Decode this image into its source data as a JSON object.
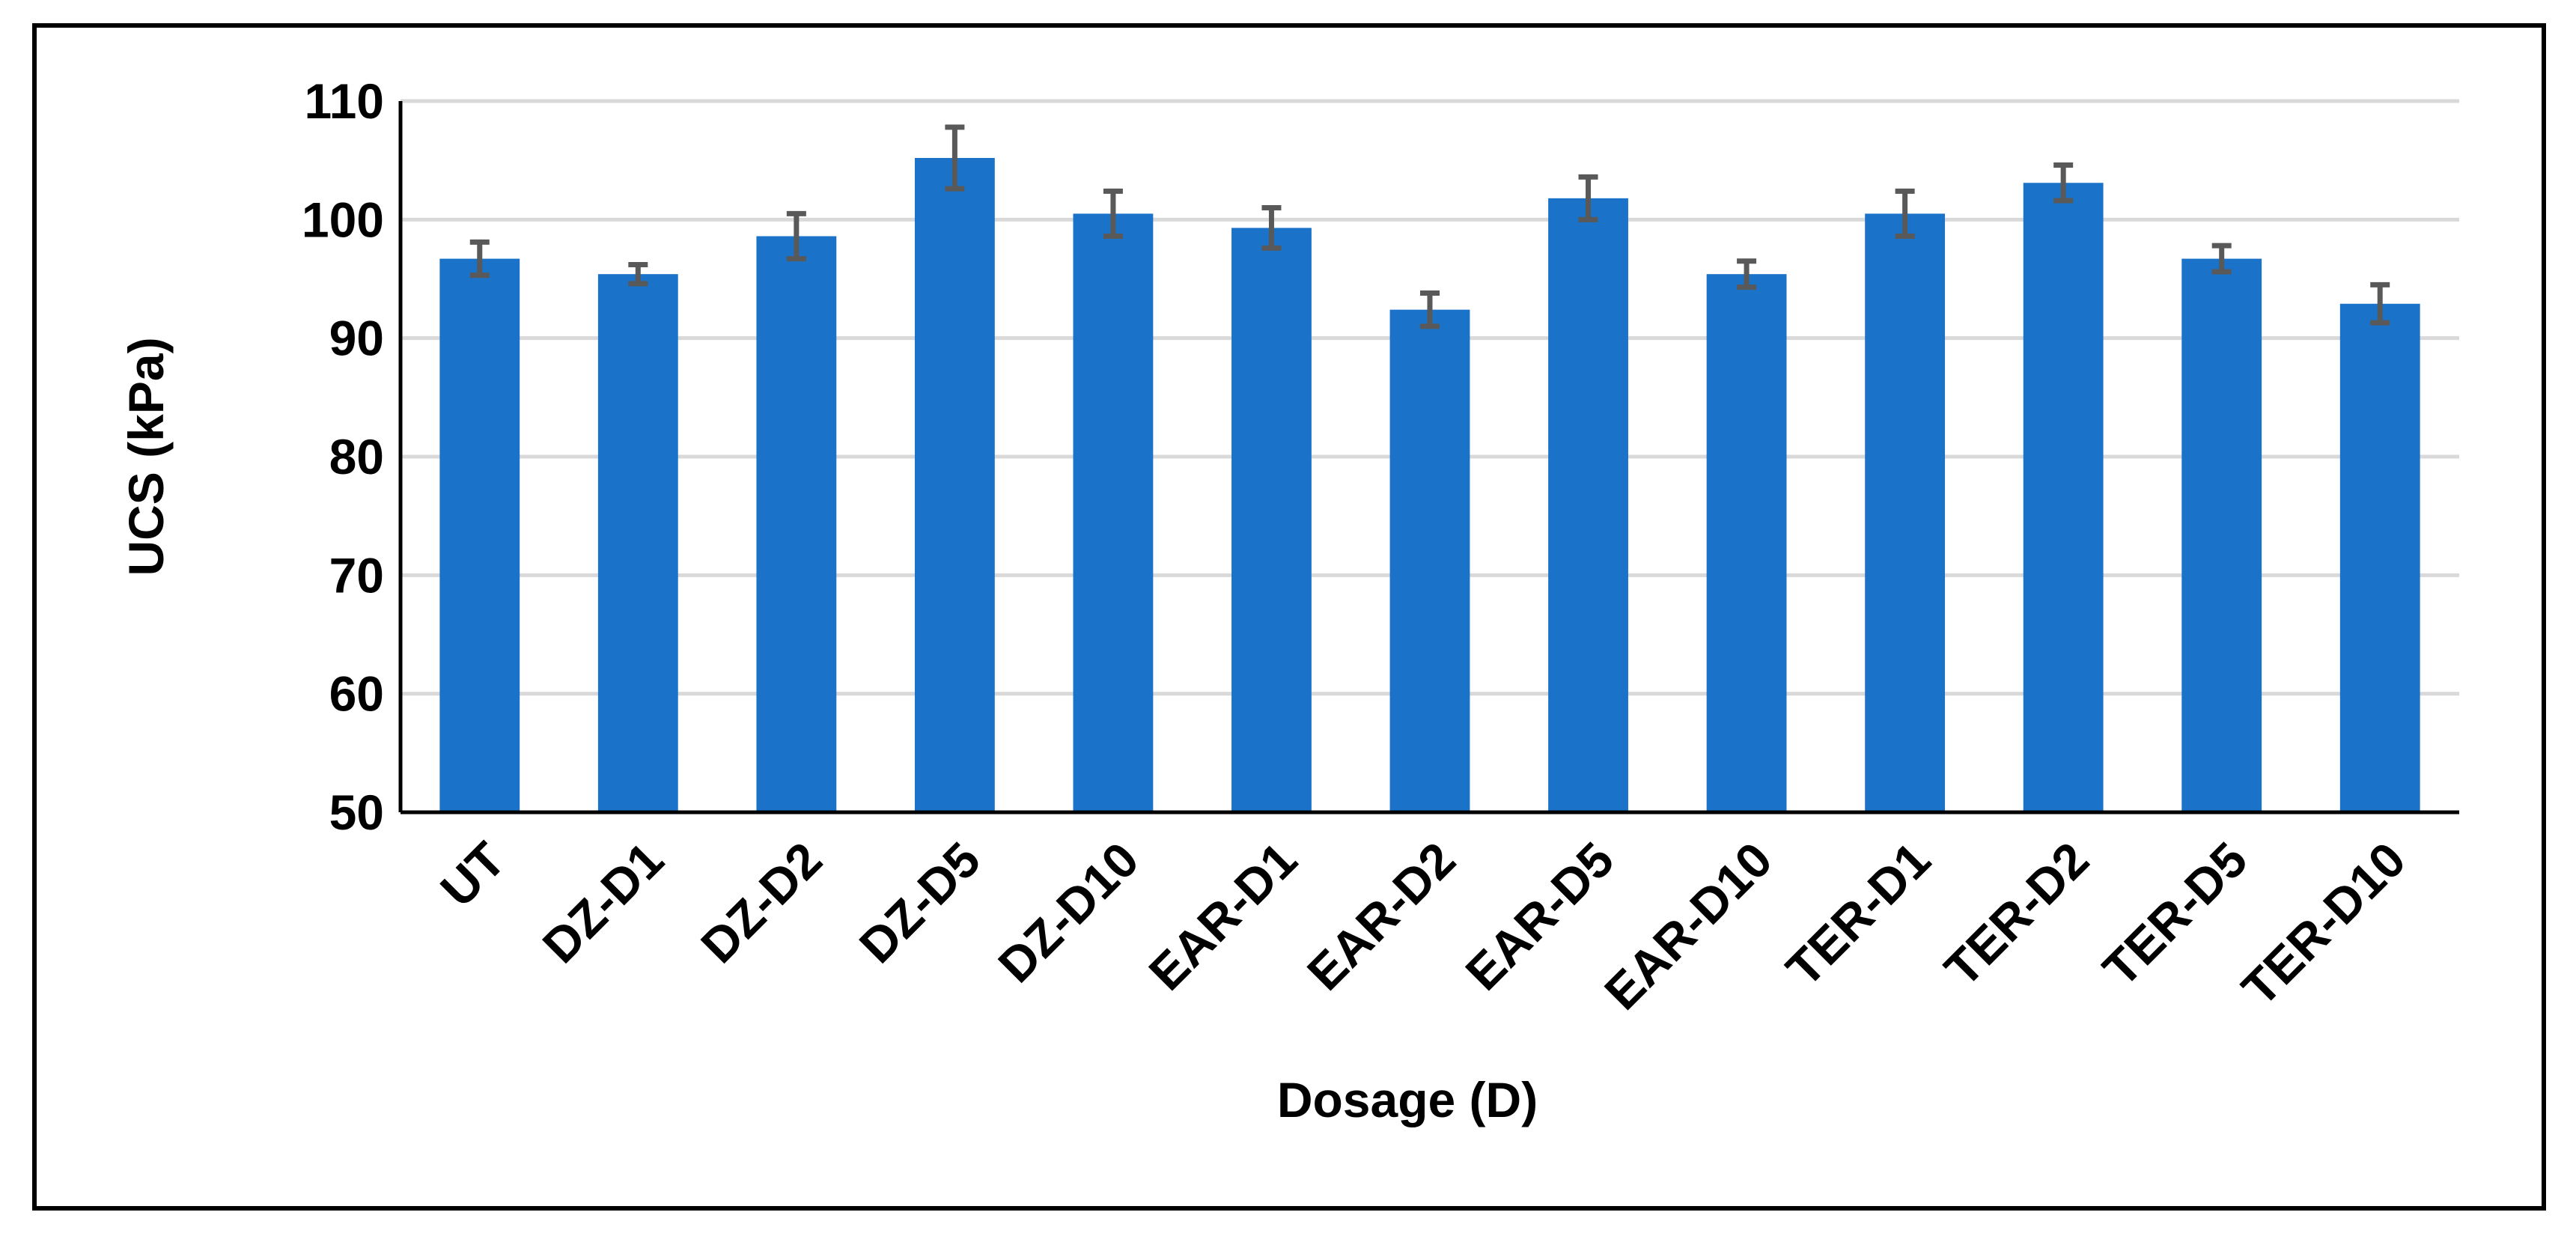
{
  "chart_data": {
    "type": "bar",
    "title": "",
    "xlabel": "Dosage (D)",
    "ylabel": "UCS (kPa)",
    "ylim": [
      50,
      110
    ],
    "yticks": [
      50,
      60,
      70,
      80,
      90,
      100,
      110
    ],
    "grid": true,
    "legend": "none",
    "categories": [
      "UT",
      "DZ-D1",
      "DZ-D2",
      "DZ-D5",
      "DZ-D10",
      "EAR-D1",
      "EAR-D2",
      "EAR-D5",
      "EAR-D10",
      "TER-D1",
      "TER-D2",
      "TER-D5",
      "TER-D10"
    ],
    "series": [
      {
        "values": [
          96.7,
          95.4,
          98.6,
          105.2,
          100.5,
          99.3,
          92.4,
          101.8,
          95.4,
          100.5,
          103.1,
          96.7,
          92.9
        ],
        "error": [
          1.4,
          0.8,
          1.9,
          2.6,
          1.9,
          1.7,
          1.4,
          1.8,
          1.1,
          1.9,
          1.5,
          1.1,
          1.6
        ],
        "color": "#1a73c9"
      }
    ],
    "error_bar_color": "#595959"
  }
}
